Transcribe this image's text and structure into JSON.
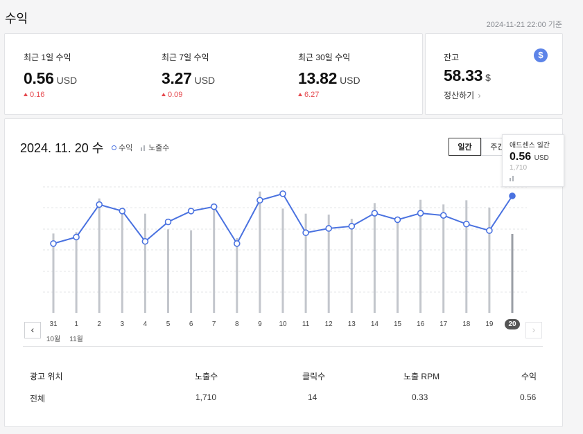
{
  "page": {
    "title": "수익",
    "timestamp": "2024-11-21 22:00 기준"
  },
  "stats": [
    {
      "label": "최근 1일 수익",
      "value": "0.56",
      "unit": "USD",
      "delta": "0.16"
    },
    {
      "label": "최근 7일 수익",
      "value": "3.27",
      "unit": "USD",
      "delta": "0.09"
    },
    {
      "label": "최근 30일 수익",
      "value": "13.82",
      "unit": "USD",
      "delta": "6.27"
    }
  ],
  "balance": {
    "label": "잔고",
    "value": "58.33",
    "unit": "$",
    "settle_label": "정산하기",
    "icon": "dollar-icon"
  },
  "chart_header": {
    "date": "2024. 11. 20 수",
    "legend_revenue": "수익",
    "legend_impressions": "노출수",
    "btn_daily": "일간",
    "btn_weekly": "주간"
  },
  "tooltip": {
    "title": "애드센스 일간",
    "value": "0.56",
    "unit": "USD",
    "impressions": "1,710"
  },
  "colors": {
    "line": "#4a72e0",
    "bar": "#c3c6cc",
    "bar_selected": "#9a9ea5",
    "delta_up": "#e5484d"
  },
  "chart_data": {
    "type": "line",
    "categories": [
      "31",
      "1",
      "2",
      "3",
      "4",
      "5",
      "6",
      "7",
      "8",
      "9",
      "10",
      "11",
      "12",
      "13",
      "14",
      "15",
      "16",
      "17",
      "18",
      "19",
      "20"
    ],
    "category_sublabels": [
      "10월",
      "11월",
      "",
      "",
      "",
      "",
      "",
      "",
      "",
      "",
      "",
      "",
      "",
      "",
      "",
      "",
      "",
      "",
      "",
      "",
      ""
    ],
    "series": [
      {
        "name": "수익",
        "type": "line",
        "values": [
          0.34,
          0.37,
          0.52,
          0.49,
          0.35,
          0.44,
          0.49,
          0.51,
          0.34,
          0.54,
          0.57,
          0.39,
          0.41,
          0.42,
          0.48,
          0.45,
          0.48,
          0.47,
          0.43,
          0.4,
          0.56
        ]
      },
      {
        "name": "노출수",
        "type": "bar",
        "values": [
          1720,
          1750,
          2480,
          2200,
          2150,
          1810,
          1790,
          2310,
          1620,
          2630,
          2260,
          2150,
          2130,
          2040,
          2380,
          1980,
          2450,
          2350,
          2440,
          2280,
          1710
        ]
      }
    ],
    "selected_index": 20,
    "grid": true
  },
  "table": {
    "headers": [
      "광고 위치",
      "노출수",
      "클릭수",
      "노출 RPM",
      "수익"
    ],
    "rows": [
      [
        "전체",
        "1,710",
        "14",
        "0.33",
        "0.56"
      ]
    ]
  }
}
